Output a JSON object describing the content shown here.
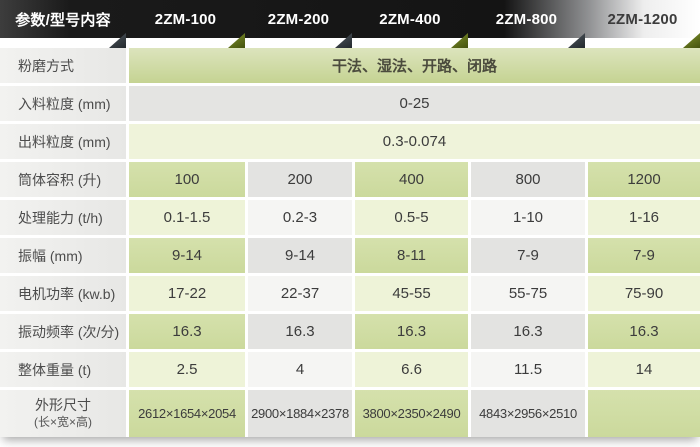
{
  "header": {
    "param_label": "参数/型号内容",
    "models": [
      "2ZM-100",
      "2ZM-200",
      "2ZM-400",
      "2ZM-800",
      "2ZM-1200"
    ]
  },
  "rows": [
    {
      "label": "粉磨方式",
      "value": "干法、湿法、开路、闭路"
    },
    {
      "label": "入料粒度 (mm)",
      "value": "0-25"
    },
    {
      "label": "出料粒度 (mm)",
      "value": "0.3-0.074"
    },
    {
      "label": "筒体容积 (升)",
      "values": [
        "100",
        "200",
        "400",
        "800",
        "1200"
      ]
    },
    {
      "label": "处理能力 (t/h)",
      "values": [
        "0.1-1.5",
        "0.2-3",
        "0.5-5",
        "1-10",
        "1-16"
      ]
    },
    {
      "label": "振幅 (mm)",
      "values": [
        "9-14",
        "9-14",
        "8-11",
        "7-9",
        "7-9"
      ]
    },
    {
      "label": "电机功率 (kw.b)",
      "values": [
        "17-22",
        "22-37",
        "45-55",
        "55-75",
        "75-90"
      ]
    },
    {
      "label": "振动频率 (次/分)",
      "values": [
        "16.3",
        "16.3",
        "16.3",
        "16.3",
        "16.3"
      ]
    },
    {
      "label": "整体重量 (t)",
      "values": [
        "2.5",
        "4",
        "6.6",
        "11.5",
        "14"
      ]
    },
    {
      "label": "外形尺寸",
      "label_unit": "(长×宽×高)",
      "values": [
        "2612×1654×2054",
        "2900×1884×2378",
        "3800×2350×2490",
        "4843×2956×2510",
        ""
      ]
    }
  ],
  "colors": {
    "header_dark": "#141414",
    "header_light_end": "#ffffff",
    "triangle_dark": "#3c4349",
    "triangle_green": "#66761f",
    "cell_green_dark": "#cedda2",
    "cell_green_light": "#eef3d8",
    "cell_gray": "#e3e3e1",
    "cell_white": "#f5f5f3",
    "merge_green": "#c9d697",
    "label_bg": "#ececea"
  }
}
